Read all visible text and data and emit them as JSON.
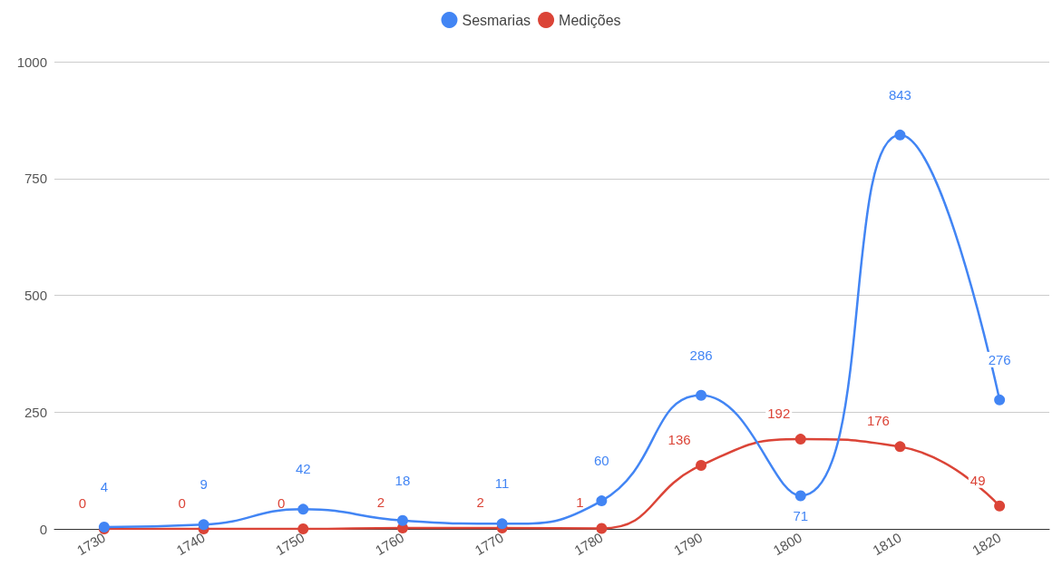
{
  "chart_data": {
    "type": "line",
    "categories": [
      "1730",
      "1740",
      "1750",
      "1760",
      "1770",
      "1780",
      "1790",
      "1800",
      "1810",
      "1820"
    ],
    "series": [
      {
        "name": "Sesmarias",
        "color": "#4285f4",
        "values": [
          4,
          9,
          42,
          18,
          11,
          60,
          286,
          71,
          843,
          276
        ]
      },
      {
        "name": "Medições",
        "color": "#db4437",
        "values": [
          0,
          0,
          0,
          2,
          2,
          1,
          136,
          192,
          176,
          49
        ]
      }
    ],
    "ylim": [
      0,
      1000
    ],
    "yticks": [
      0,
      250,
      500,
      750,
      1000
    ],
    "grid": "y",
    "legend": "top",
    "marker": "circle",
    "line_style": "solid",
    "data_labels": true
  }
}
